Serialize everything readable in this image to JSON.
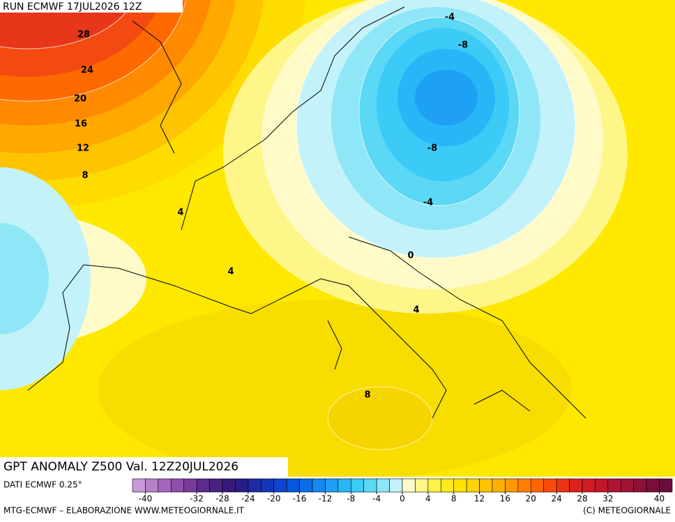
{
  "header": {
    "run": "RUN ECMWF 17JUL2026 12Z"
  },
  "map": {
    "title": "GPT ANOMALY Z500 Val. 12Z20JUL2026",
    "contour_labels": [
      28,
      24,
      20,
      16,
      12,
      8,
      4,
      4,
      -4,
      -8,
      -8,
      -4,
      0,
      4,
      8
    ]
  },
  "colorbar": {
    "source": "DATI ECMWF 0.25°",
    "range": [
      -42,
      42
    ],
    "colors": [
      "#c89ad8",
      "#b87fca",
      "#a466bb",
      "#8f4fab",
      "#7a3a9c",
      "#5e2a8c",
      "#48227e",
      "#371a78",
      "#2a1d86",
      "#1f2ba0",
      "#1636b8",
      "#0d45cc",
      "#0458de",
      "#0a6ee8",
      "#1487f0",
      "#1ea0f5",
      "#28b6f7",
      "#3ccaf6",
      "#5ad8f5",
      "#8ee6f6",
      "#c4f2fa",
      "#fffbc8",
      "#fff68a",
      "#fff04a",
      "#ffea1c",
      "#ffe200",
      "#ffd400",
      "#ffc400",
      "#ffb000",
      "#ff9800",
      "#ff8000",
      "#ff6600",
      "#f74c0c",
      "#ec3414",
      "#de201c",
      "#d01a24",
      "#c0162a",
      "#b01430",
      "#a01236",
      "#8e103a",
      "#7c0e3c",
      "#6a0c3e"
    ],
    "ticks": [
      -40,
      -32,
      -28,
      -24,
      -20,
      -16,
      -12,
      -8,
      -4,
      0,
      4,
      8,
      12,
      16,
      20,
      24,
      28,
      32,
      40
    ]
  },
  "footer": {
    "left": "MTG-ECMWF – ELABORAZIONE WWW.METEOGIORNALE.IT",
    "right": "(C) METEOGIORNALE"
  }
}
